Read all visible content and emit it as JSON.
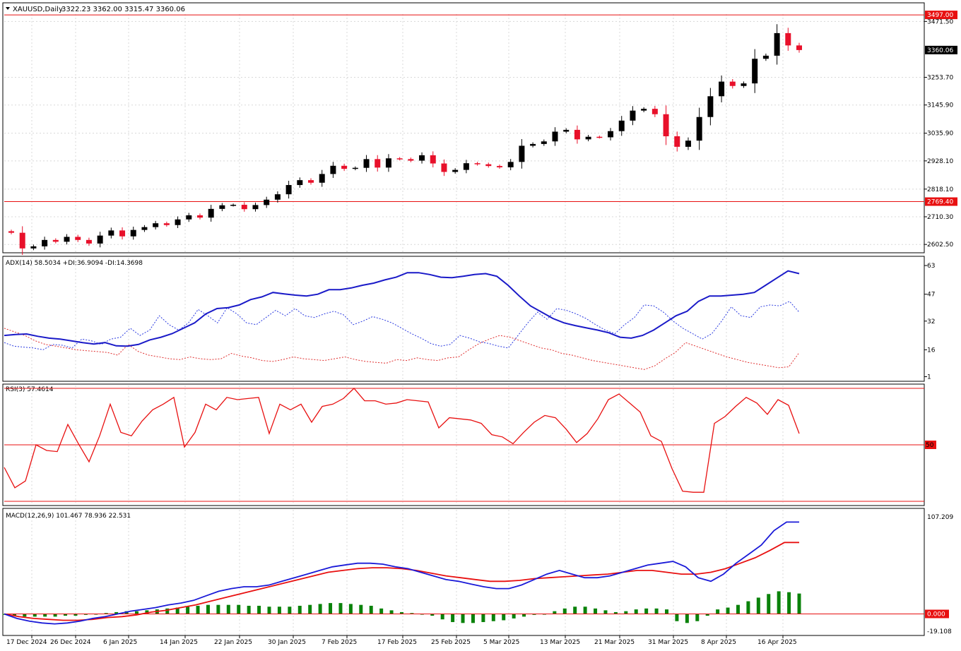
{
  "colors": {
    "bull": "#000000",
    "bear": "#e8102a",
    "adx": "#1a1ac8",
    "plus_di": "#2a3ae0",
    "minus_di": "#e03030",
    "rsi": "#e81010",
    "macd": "#1a1ad8",
    "signal": "#e81010",
    "histogram": "#0a820a",
    "level_line": "#e81010",
    "grid": "#d8d8d8",
    "border": "#000000"
  },
  "icons": {
    "menu": "triangle-down-icon"
  },
  "main": {
    "header": {
      "symbol": "XAUUSD,Daily",
      "ohlc": "3322.23 3362.00 3315.47 3360.06"
    },
    "price_axis": [
      "3471.50",
      "3253.70",
      "3145.90",
      "3035.90",
      "2928.10",
      "2818.10",
      "2710.30",
      "2602.50"
    ],
    "hlines": [
      {
        "value": 3497.0,
        "label": "3497.00"
      },
      {
        "value": 2769.4,
        "label": "2769.40"
      }
    ],
    "current_price": {
      "value": 3360.06,
      "label": "3360.06"
    }
  },
  "chart_data": [
    {
      "type": "candlestick",
      "title": "XAUUSD,Daily",
      "ylim": [
        2570,
        3500
      ],
      "x_labels": [
        "17 Dec 2024",
        "26 Dec 2024",
        "6 Jan 2025",
        "14 Jan 2025",
        "22 Jan 2025",
        "30 Jan 2025",
        "7 Feb 2025",
        "17 Feb 2025",
        "25 Feb 2025",
        "5 Mar 2025",
        "13 Mar 2025",
        "21 Mar 2025",
        "31 Mar 2025",
        "8 Apr 2025",
        "16 Apr 2025"
      ],
      "closes": [
        2648,
        2587,
        2595,
        2620,
        2613,
        2632,
        2620,
        2606,
        2637,
        2657,
        2634,
        2659,
        2670,
        2685,
        2678,
        2700,
        2716,
        2707,
        2741,
        2755,
        2757,
        2740,
        2756,
        2777,
        2798,
        2834,
        2853,
        2843,
        2877,
        2909,
        2897,
        2901,
        2935,
        2902,
        2938,
        2935,
        2929,
        2950,
        2918,
        2885,
        2893,
        2919,
        2915,
        2908,
        2903,
        2924,
        2987,
        2994,
        3004,
        3042,
        3049,
        3012,
        3022,
        3020,
        3044,
        3085,
        3124,
        3131,
        3110,
        3024,
        2983,
        3007,
        3099,
        3180,
        3237,
        3220,
        3230,
        3326,
        3338,
        3426,
        3378,
        3360
      ]
    },
    {
      "type": "line",
      "title": "ADX(14) 58.5034 +DI:36.9094 -DI:14.3698",
      "ylim": [
        0,
        65
      ],
      "ytick_labels": [
        "63",
        "47",
        "32",
        "16",
        "1"
      ],
      "series": [
        {
          "name": "ADX(14) 58.5034",
          "values": [
            24,
            24.5,
            24.8,
            23.5,
            22.5,
            22,
            21,
            20,
            19.2,
            20,
            18.2,
            18,
            19,
            21.5,
            23,
            25,
            28,
            31,
            36,
            39,
            39.5,
            41,
            44,
            45.5,
            48,
            47.2,
            46.5,
            46,
            47,
            49.5,
            49.5,
            50.5,
            52,
            53.2,
            55,
            56.5,
            59,
            59,
            58,
            56.5,
            56.2,
            57,
            58,
            58.5,
            57,
            52,
            46,
            40.5,
            37,
            33.5,
            31,
            29.5,
            28.2,
            27,
            25.5,
            23,
            22.5,
            24,
            27,
            31,
            35,
            37.5,
            43,
            46,
            46,
            46.5,
            47,
            48,
            52,
            56,
            60,
            58.5
          ]
        },
        {
          "name": "+DI:36.9094",
          "values": [
            20,
            18,
            17.5,
            17,
            16,
            19,
            18.5,
            17,
            22,
            21,
            19,
            22,
            23,
            28,
            24,
            27,
            35,
            30,
            27,
            31,
            38.5,
            35,
            31,
            39.5,
            36,
            31,
            30,
            34,
            38,
            35,
            39,
            35,
            34,
            36,
            37.5,
            35.5,
            30,
            32,
            34.5,
            33,
            31,
            28,
            25,
            22.5,
            19.5,
            18,
            19,
            24,
            22.5,
            20.5,
            19.5,
            18,
            17,
            24,
            31,
            37,
            33,
            39,
            38,
            36,
            33.5,
            30,
            27,
            25,
            30,
            34,
            41,
            40.5,
            37,
            32,
            28,
            25,
            22,
            25,
            32,
            40,
            35,
            34,
            40,
            41,
            40.5,
            43,
            37
          ]
        },
        {
          "name": "-DI:14.3698",
          "values": [
            28,
            26,
            24,
            21,
            19,
            18,
            17,
            16,
            15.5,
            15,
            14.5,
            13,
            19,
            15,
            13,
            12,
            11,
            10.5,
            12,
            11,
            10.5,
            11,
            14,
            12.5,
            11.5,
            10,
            9.5,
            10.5,
            12,
            11,
            10.5,
            10,
            11,
            12,
            10.5,
            9.5,
            9,
            8.5,
            10.5,
            10,
            11.5,
            10.5,
            10,
            11.5,
            12,
            16,
            19.5,
            22,
            24,
            23,
            21,
            19,
            17,
            16,
            14,
            13,
            11.5,
            10,
            9,
            8,
            7,
            6,
            5,
            7,
            11,
            14.5,
            20,
            18,
            16,
            14,
            12,
            10.5,
            9,
            8,
            7,
            6,
            6.5,
            14.4
          ]
        }
      ]
    },
    {
      "type": "line",
      "title": "RSI(3) 57.4614",
      "ylim": [
        0,
        100
      ],
      "levels": [
        50
      ],
      "ytick_labels": [
        "50"
      ],
      "series": [
        {
          "name": "RSI(3) 57.4614",
          "values": [
            30,
            12,
            18,
            50,
            45,
            44,
            68,
            51,
            35,
            58,
            86,
            61,
            58,
            71,
            81,
            86,
            92,
            48,
            61,
            86,
            81,
            92,
            90,
            91,
            92,
            60,
            86,
            81,
            86,
            70,
            84,
            86,
            91,
            100,
            89,
            89,
            86,
            87,
            90,
            89,
            88,
            65,
            74,
            73,
            72,
            69,
            59,
            57,
            51,
            61,
            70,
            76,
            74,
            64,
            52,
            60,
            73,
            90,
            95,
            87,
            79,
            58,
            53,
            29,
            9,
            8,
            8,
            69,
            75,
            84,
            92,
            87,
            77,
            90,
            85,
            60
          ]
        }
      ]
    },
    {
      "type": "bar+line",
      "title": "MACD(12,26,9) 101.467 78.936 22.531",
      "ylim": [
        -19.108,
        107.209
      ],
      "ytick_labels": [
        "107.209",
        "0.000",
        "-19.108"
      ],
      "series": [
        {
          "name": "MACD(12,26,9) 101.467",
          "values": [
            0,
            -5,
            -8,
            -10,
            -11,
            -10,
            -8,
            -5,
            -3,
            0,
            3,
            5,
            7,
            10,
            12,
            15,
            20,
            25,
            28,
            30,
            30,
            32,
            36,
            40,
            44,
            48,
            52,
            54,
            56,
            56,
            55,
            52,
            50,
            46,
            42,
            38,
            36,
            33,
            30,
            28,
            28,
            32,
            38,
            44,
            48,
            44,
            40,
            40,
            42,
            46,
            50,
            54,
            56,
            58,
            52,
            40,
            36,
            44,
            56,
            66,
            76,
            92,
            101.467,
            101.467
          ]
        },
        {
          "name": "78.936",
          "values": [
            0,
            -3,
            -5,
            -6,
            -7,
            -7,
            -6,
            -4,
            -3,
            -1,
            2,
            4,
            7,
            10,
            14,
            18,
            22,
            26,
            30,
            34,
            38,
            42,
            46,
            48,
            50,
            51,
            51,
            50,
            48,
            45,
            42,
            40,
            38,
            36,
            36,
            37,
            39,
            40,
            41,
            42,
            43,
            44,
            46,
            48,
            48,
            46,
            44,
            44,
            46,
            50,
            56,
            62,
            70,
            78.936,
            78.936
          ]
        },
        {
          "name": "22.531",
          "values": [
            -1,
            -2,
            -3,
            -3,
            -3,
            -3,
            -2,
            -2,
            -1,
            0,
            1,
            2,
            3,
            3,
            4,
            5,
            6,
            7,
            8,
            9,
            10,
            10,
            10,
            10,
            9,
            9,
            8,
            8,
            8,
            9,
            10,
            11,
            12,
            12,
            11,
            10,
            9,
            6,
            4,
            2,
            1,
            0,
            -2,
            -6,
            -9,
            -10,
            -10,
            -9,
            -8,
            -7,
            -5,
            -3,
            -1,
            0,
            3,
            6,
            8,
            8,
            6,
            4,
            2,
            3,
            5,
            6,
            6,
            5,
            -8,
            -10,
            -8,
            -2,
            5,
            7,
            10,
            14,
            18,
            22,
            25,
            24,
            22.531
          ]
        }
      ]
    }
  ]
}
